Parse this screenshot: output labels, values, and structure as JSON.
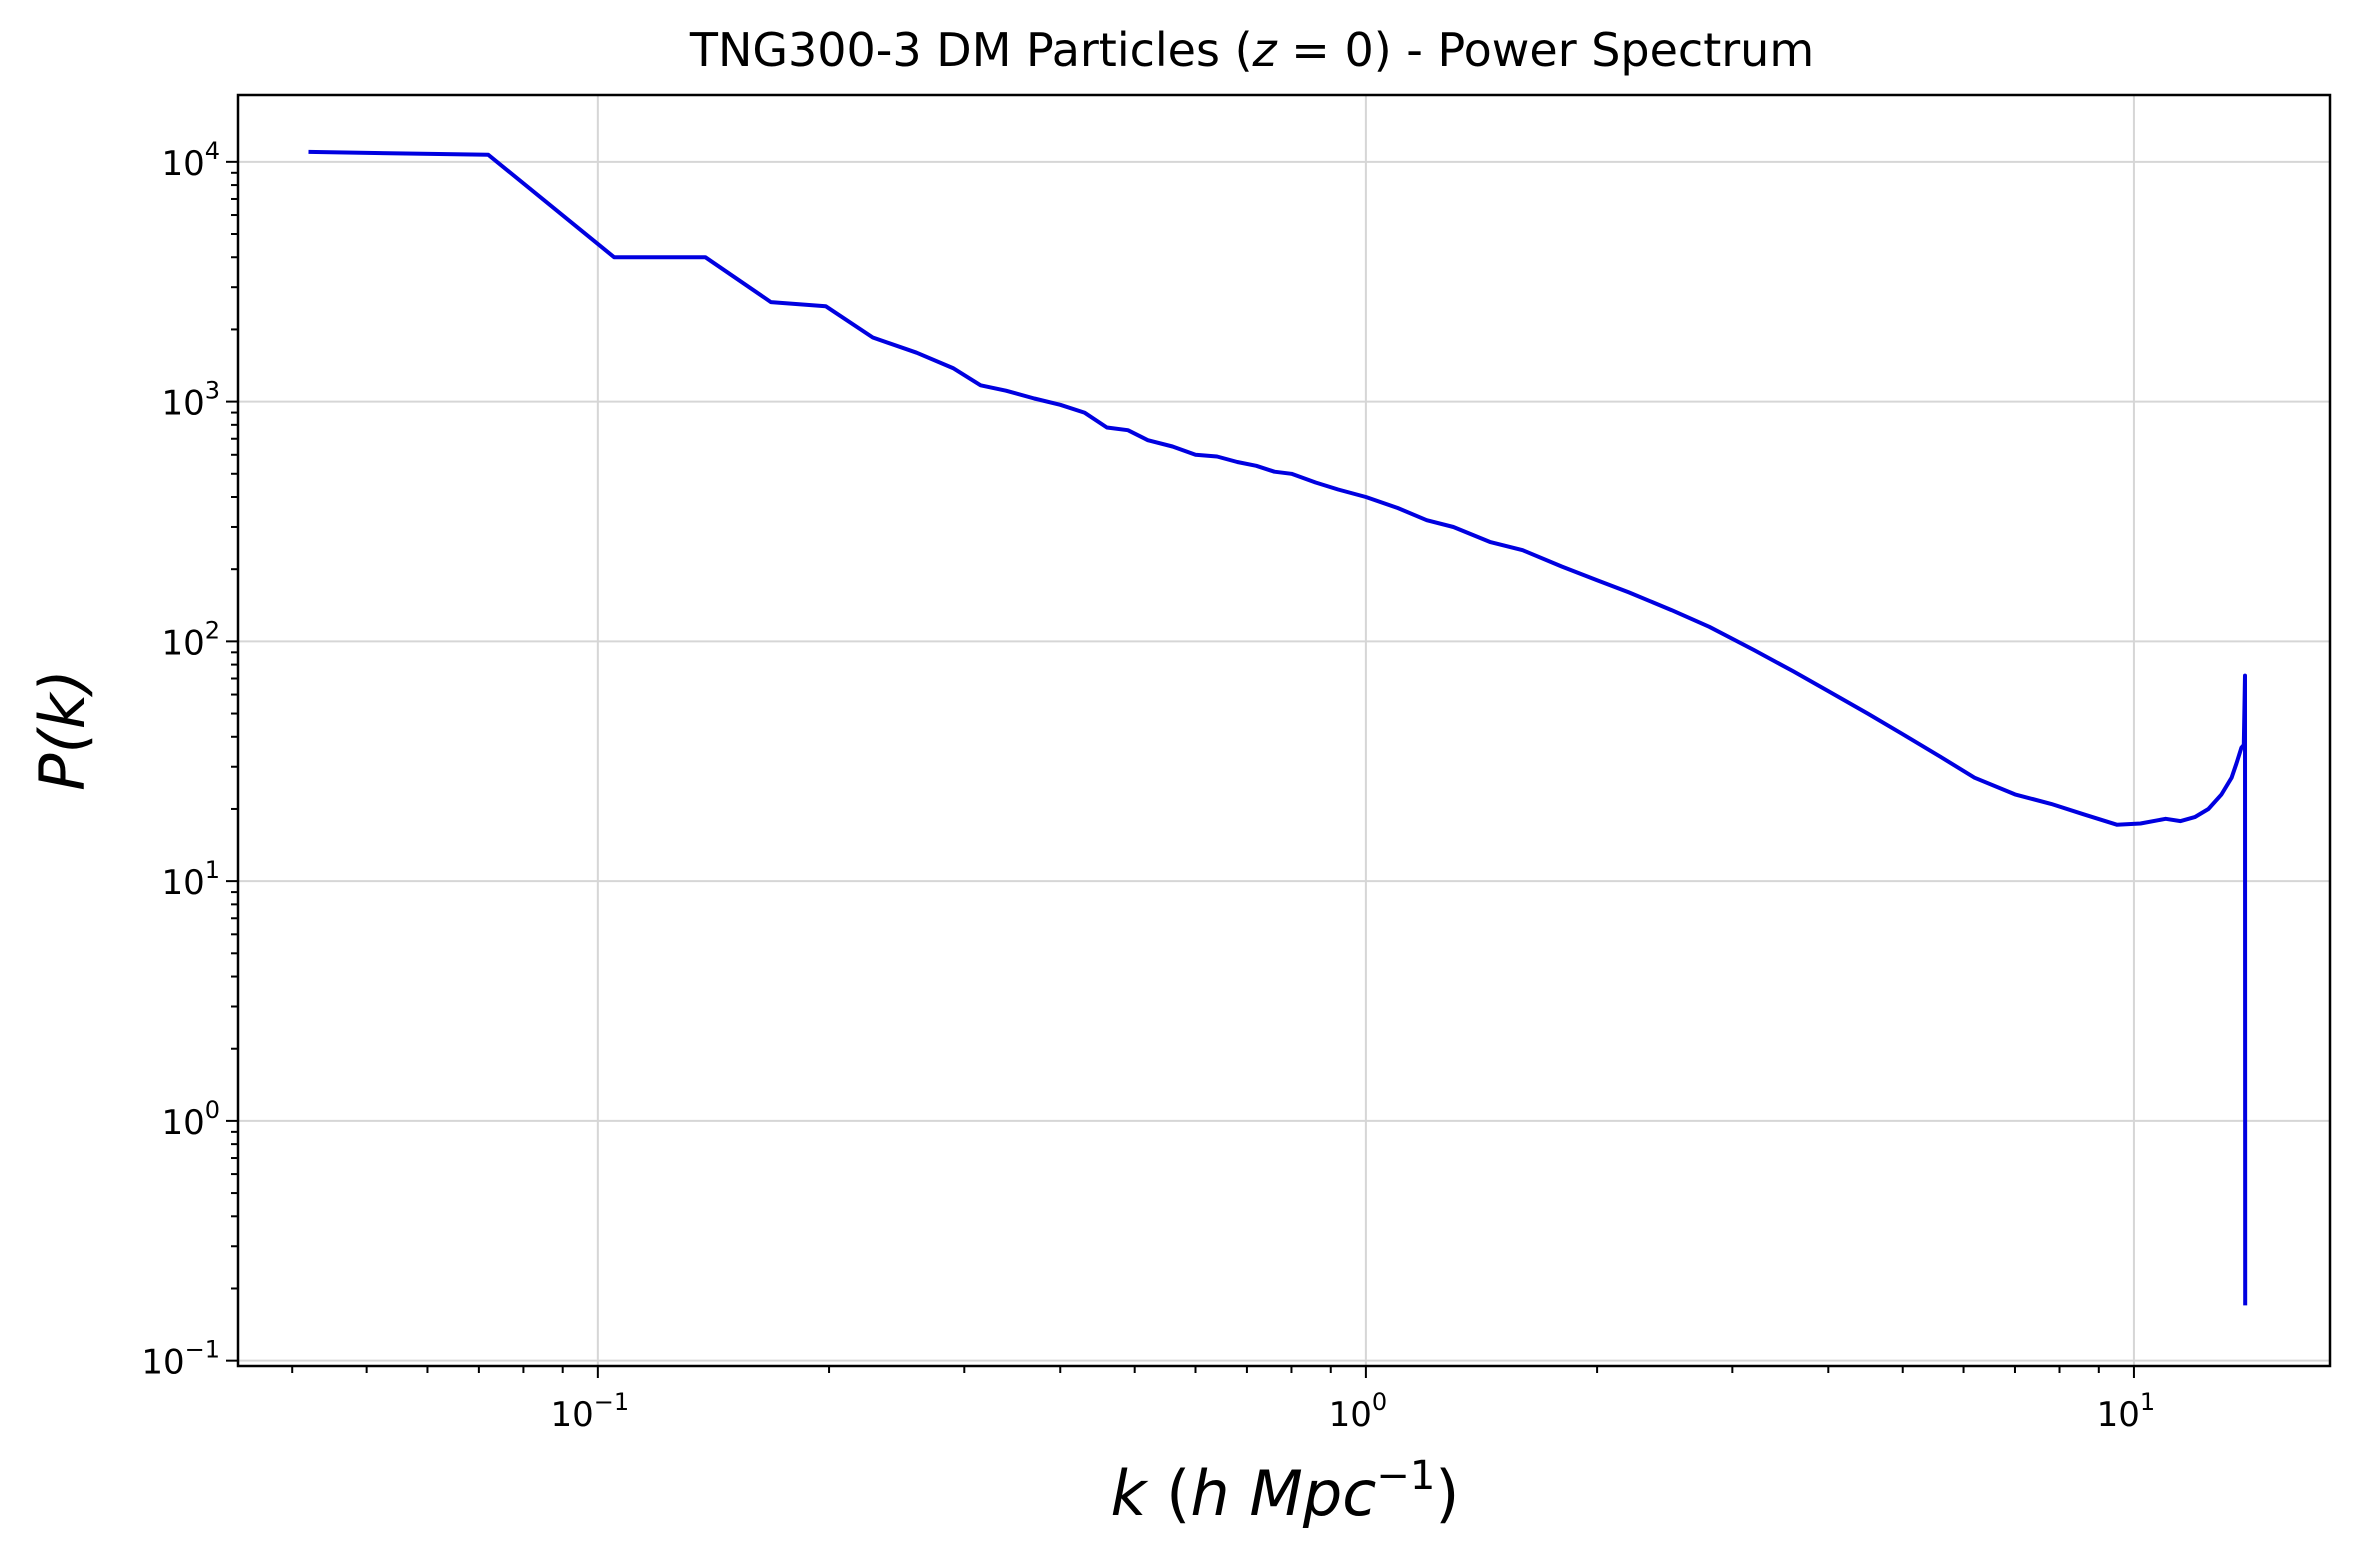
{
  "chart_data": {
    "type": "line",
    "title": "TNG300-3 DM Particles (z = 0) - Power Spectrum",
    "title_parts": {
      "before": "TNG300-3 DM Particles (",
      "var": "z",
      "eq": " = 0",
      "after": ") - Power Spectrum"
    },
    "xlabel": "k (h Mpc⁻¹)",
    "xlabel_parts": {
      "k": "k",
      "open": " (",
      "h": "h",
      "mpc": " Mpc",
      "sup": "−1",
      "close": ")"
    },
    "ylabel": "P(k)",
    "xscale": "log",
    "yscale": "log",
    "xlim": [
      0.034,
      18
    ],
    "ylim": [
      0.095,
      19000
    ],
    "grid": true,
    "x_ticks": [
      {
        "value": 0.1,
        "base": "10",
        "exp": "−1"
      },
      {
        "value": 1,
        "base": "10",
        "exp": "0"
      },
      {
        "value": 10,
        "base": "10",
        "exp": "1"
      }
    ],
    "y_ticks": [
      {
        "value": 0.1,
        "base": "10",
        "exp": "−1"
      },
      {
        "value": 1,
        "base": "10",
        "exp": "0"
      },
      {
        "value": 10,
        "base": "10",
        "exp": "1"
      },
      {
        "value": 100,
        "base": "10",
        "exp": "2"
      },
      {
        "value": 1000,
        "base": "10",
        "exp": "3"
      },
      {
        "value": 10000,
        "base": "10",
        "exp": "4"
      }
    ],
    "series": [
      {
        "color": "#0000e0",
        "x": [
          0.042,
          0.072,
          0.105,
          0.138,
          0.168,
          0.198,
          0.228,
          0.26,
          0.29,
          0.315,
          0.34,
          0.37,
          0.4,
          0.43,
          0.46,
          0.49,
          0.52,
          0.56,
          0.6,
          0.64,
          0.68,
          0.72,
          0.76,
          0.8,
          0.86,
          0.92,
          1.0,
          1.1,
          1.2,
          1.3,
          1.45,
          1.6,
          1.8,
          2.0,
          2.2,
          2.5,
          2.8,
          3.2,
          3.6,
          4.0,
          4.5,
          5.0,
          5.6,
          6.2,
          7.0,
          7.8,
          8.6,
          9.5,
          10.2,
          11.0,
          11.5,
          12.0,
          12.5,
          13.0,
          13.4,
          13.6,
          13.8,
          13.9,
          13.95,
          13.96
        ],
        "y": [
          11000,
          10700,
          4000,
          4000,
          2600,
          2500,
          1850,
          1600,
          1380,
          1170,
          1110,
          1030,
          970,
          900,
          780,
          760,
          690,
          650,
          600,
          590,
          560,
          540,
          510,
          500,
          460,
          430,
          400,
          360,
          320,
          300,
          260,
          240,
          205,
          180,
          160,
          135,
          115,
          92,
          75,
          62,
          50,
          41,
          33,
          27,
          23,
          21,
          19,
          17.2,
          17.4,
          18.2,
          17.8,
          18.5,
          20,
          23,
          27,
          31,
          36,
          37,
          72,
          0.17
        ]
      }
    ]
  }
}
